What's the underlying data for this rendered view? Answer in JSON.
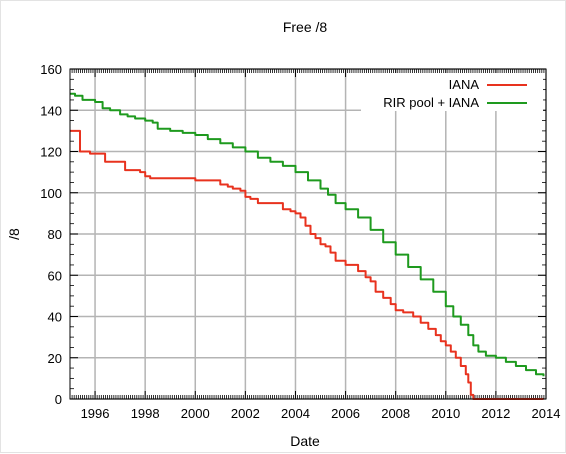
{
  "chart_data": {
    "type": "line",
    "title": "Free /8",
    "xlabel": "Date",
    "ylabel": "/8",
    "xlim": [
      1995,
      2014
    ],
    "ylim": [
      0,
      160
    ],
    "grid": true,
    "legend_position": "top-right",
    "x_ticks": [
      "1996",
      "1998",
      "2000",
      "2002",
      "2004",
      "2006",
      "2008",
      "2010",
      "2012",
      "2014"
    ],
    "y_ticks": [
      "0",
      "20",
      "40",
      "60",
      "80",
      "100",
      "120",
      "140",
      "160"
    ],
    "colors": {
      "IANA": "#e8321e",
      "RIR pool + IANA": "#1e9a1e",
      "grid": "#b4b4b4"
    },
    "series": [
      {
        "name": "IANA",
        "x": [
          1995.0,
          1995.2,
          1995.4,
          1995.8,
          1996.1,
          1996.4,
          1996.6,
          1997.0,
          1997.2,
          1997.6,
          1997.8,
          1998.0,
          1998.2,
          1998.5,
          1999.0,
          1999.5,
          2000.0,
          2000.5,
          2001.0,
          2001.3,
          2001.5,
          2001.8,
          2002.0,
          2002.2,
          2002.5,
          2002.8,
          2003.0,
          2003.5,
          2003.8,
          2004.0,
          2004.2,
          2004.4,
          2004.6,
          2004.8,
          2005.0,
          2005.2,
          2005.4,
          2005.6,
          2006.0,
          2006.5,
          2006.8,
          2007.0,
          2007.2,
          2007.5,
          2007.8,
          2008.0,
          2008.3,
          2008.7,
          2009.0,
          2009.3,
          2009.6,
          2009.8,
          2010.0,
          2010.2,
          2010.4,
          2010.6,
          2010.8,
          2010.9,
          2011.0,
          2011.1,
          2012.0,
          2013.0,
          2013.9
        ],
        "y": [
          130,
          130,
          120,
          119,
          119,
          115,
          115,
          115,
          111,
          111,
          110,
          108,
          107,
          107,
          107,
          107,
          106,
          106,
          104,
          103,
          102,
          101,
          98,
          97,
          95,
          95,
          95,
          92,
          91,
          90,
          88,
          84,
          80,
          78,
          75,
          74,
          71,
          67,
          65,
          62,
          59,
          57,
          52,
          49,
          46,
          43,
          42,
          40,
          37,
          34,
          31,
          28,
          26,
          23,
          20,
          16,
          12,
          8,
          2,
          0,
          0,
          0,
          0
        ]
      },
      {
        "name": "RIR pool + IANA",
        "x": [
          1995.0,
          1995.2,
          1995.5,
          1996.0,
          1996.3,
          1996.6,
          1997.0,
          1997.3,
          1997.6,
          1998.0,
          1998.3,
          1998.5,
          1999.0,
          1999.5,
          2000.0,
          2000.5,
          2001.0,
          2001.5,
          2002.0,
          2002.5,
          2003.0,
          2003.5,
          2004.0,
          2004.5,
          2005.0,
          2005.3,
          2005.6,
          2006.0,
          2006.5,
          2007.0,
          2007.5,
          2008.0,
          2008.5,
          2009.0,
          2009.5,
          2010.0,
          2010.3,
          2010.6,
          2010.9,
          2011.1,
          2011.3,
          2011.6,
          2012.0,
          2012.4,
          2012.8,
          2013.2,
          2013.6,
          2013.9
        ],
        "y": [
          148,
          147,
          145,
          144,
          141,
          140,
          138,
          137,
          136,
          135,
          134,
          131,
          130,
          129,
          128,
          126,
          124,
          122,
          120,
          117,
          115,
          113,
          110,
          106,
          102,
          99,
          95,
          92,
          88,
          82,
          76,
          70,
          64,
          58,
          52,
          45,
          40,
          36,
          31,
          26,
          23,
          21,
          20,
          18,
          16,
          14,
          12,
          11
        ]
      }
    ]
  }
}
